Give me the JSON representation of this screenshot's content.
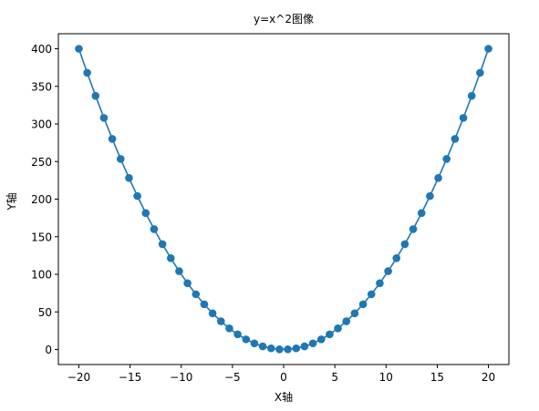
{
  "chart_data": {
    "type": "line",
    "title": "y=x^2图像",
    "xlabel": "X轴",
    "ylabel": "Y轴",
    "xlim": [
      -22,
      22
    ],
    "ylim": [
      -20,
      420
    ],
    "xticks": [
      -20,
      -15,
      -10,
      -5,
      0,
      5,
      10,
      15,
      20
    ],
    "yticks": [
      0,
      50,
      100,
      150,
      200,
      250,
      300,
      350,
      400
    ],
    "grid": false,
    "legend": "none",
    "series": [
      {
        "color": "#1f77b4",
        "marker": "circle",
        "x": [
          -20,
          -19.1837,
          -18.3673,
          -17.551,
          -16.7347,
          -15.9184,
          -15.102,
          -14.2857,
          -13.4694,
          -12.6531,
          -11.8367,
          -11.0204,
          -10.2041,
          -9.3878,
          -8.5714,
          -7.7551,
          -6.9388,
          -6.1224,
          -5.3061,
          -4.4898,
          -3.6735,
          -2.8571,
          -2.0408,
          -1.2245,
          -0.4082,
          0.4082,
          1.2245,
          2.0408,
          2.8571,
          3.6735,
          4.4898,
          5.3061,
          6.1224,
          6.9388,
          7.7551,
          8.5714,
          9.3878,
          10.2041,
          11.0204,
          11.8367,
          12.6531,
          13.4694,
          14.2857,
          15.102,
          15.9184,
          16.7347,
          17.551,
          18.3673,
          19.1837,
          20
        ],
        "y": [
          400,
          368.01,
          337.36,
          308.04,
          280.05,
          253.39,
          228.07,
          204.08,
          181.42,
          160.1,
          140.11,
          121.45,
          104.12,
          88.13,
          73.47,
          60.14,
          48.15,
          37.48,
          28.15,
          20.16,
          13.49,
          8.16,
          4.16,
          1.5,
          0.17,
          0.17,
          1.5,
          4.16,
          8.16,
          13.49,
          20.16,
          28.15,
          37.48,
          48.15,
          60.14,
          73.47,
          88.13,
          104.12,
          121.45,
          140.11,
          160.1,
          181.42,
          204.08,
          228.07,
          253.39,
          280.05,
          308.04,
          337.36,
          368.01,
          400
        ]
      }
    ]
  }
}
